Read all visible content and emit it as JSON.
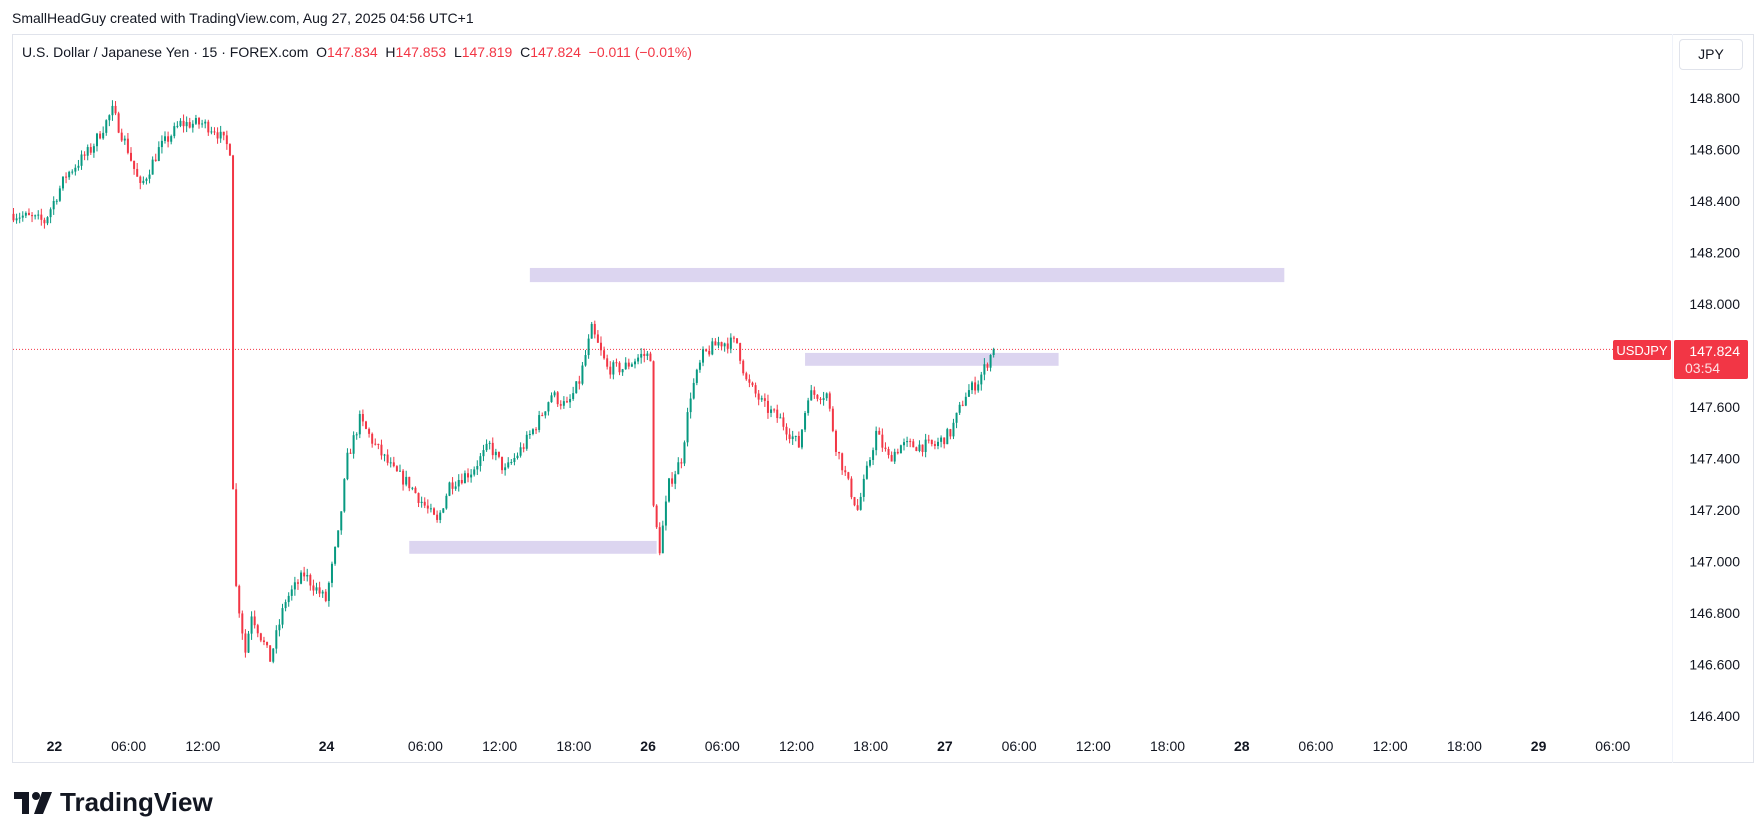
{
  "credit": "SmallHeadGuy created with TradingView.com, Aug 27, 2025 04:56 UTC+1",
  "legend": {
    "symbol": "U.S. Dollar / Japanese Yen · 15 · FOREX.com",
    "o_label": "O",
    "o": "147.834",
    "h_label": "H",
    "h": "147.853",
    "l_label": "L",
    "l": "147.819",
    "c_label": "C",
    "c": "147.824",
    "change": "−0.011 (−0.01%)"
  },
  "currency_button": "JPY",
  "price_tag": {
    "symbol": "USDJPY",
    "price": "147.824",
    "countdown": "03:54"
  },
  "logo": "TradingView",
  "colors": {
    "up": "#089981",
    "down": "#f23645",
    "zone": "#dcd5f0"
  },
  "chart_data": {
    "type": "candlestick",
    "interval_minutes": 15,
    "ylim": [
      146.3,
      148.95
    ],
    "y_ticks": [
      "148.800",
      "148.600",
      "148.400",
      "148.200",
      "148.000",
      "147.600",
      "147.400",
      "147.200",
      "147.000",
      "146.800",
      "146.600",
      "146.400"
    ],
    "y_tick_values": [
      148.8,
      148.6,
      148.4,
      148.2,
      148.0,
      147.6,
      147.4,
      147.2,
      147.0,
      146.8,
      146.6,
      146.4
    ],
    "x_ticks": [
      {
        "label": "22",
        "bold": true,
        "idx": 10
      },
      {
        "label": "06:00",
        "idx": 34
      },
      {
        "label": "12:00",
        "idx": 58
      },
      {
        "label": "24",
        "bold": true,
        "idx": 98
      },
      {
        "label": "06:00",
        "idx": 130
      },
      {
        "label": "12:00",
        "idx": 154
      },
      {
        "label": "18:00",
        "idx": 178
      },
      {
        "label": "26",
        "bold": true,
        "idx": 202
      },
      {
        "label": "06:00",
        "idx": 226
      },
      {
        "label": "12:00",
        "idx": 250
      },
      {
        "label": "18:00",
        "idx": 274
      },
      {
        "label": "27",
        "bold": true,
        "idx": 298
      },
      {
        "label": "06:00",
        "idx": 322
      },
      {
        "label": "12:00",
        "idx": 346
      },
      {
        "label": "18:00",
        "idx": 370
      },
      {
        "label": "28",
        "bold": true,
        "idx": 394
      },
      {
        "label": "06:00",
        "idx": 418
      },
      {
        "label": "12:00",
        "idx": 442
      },
      {
        "label": "18:00",
        "idx": 466
      },
      {
        "label": "29",
        "bold": true,
        "idx": 490
      },
      {
        "label": "06:00",
        "idx": 514
      }
    ],
    "last_price": 147.824,
    "path": [
      [
        0,
        148.35
      ],
      [
        10,
        148.32
      ],
      [
        17,
        148.5
      ],
      [
        25,
        148.6
      ],
      [
        32,
        148.75
      ],
      [
        37,
        148.6
      ],
      [
        41,
        148.45
      ],
      [
        47,
        148.6
      ],
      [
        54,
        148.7
      ],
      [
        61,
        148.7
      ],
      [
        65,
        148.68
      ],
      [
        70,
        148.6
      ],
      [
        71,
        147.3
      ],
      [
        72,
        146.9
      ],
      [
        75,
        146.65
      ],
      [
        77,
        146.8
      ],
      [
        83,
        146.62
      ],
      [
        88,
        146.85
      ],
      [
        94,
        146.95
      ],
      [
        101,
        146.85
      ],
      [
        105,
        147.1
      ],
      [
        108,
        147.4
      ],
      [
        112,
        147.55
      ],
      [
        117,
        147.45
      ],
      [
        123,
        147.35
      ],
      [
        128,
        147.3
      ],
      [
        134,
        147.2
      ],
      [
        137,
        147.15
      ],
      [
        141,
        147.3
      ],
      [
        148,
        147.35
      ],
      [
        154,
        147.45
      ],
      [
        159,
        147.35
      ],
      [
        165,
        147.45
      ],
      [
        170,
        147.55
      ],
      [
        174,
        147.65
      ],
      [
        179,
        147.6
      ],
      [
        183,
        147.7
      ],
      [
        187,
        147.9
      ],
      [
        192,
        147.75
      ],
      [
        197,
        147.75
      ],
      [
        203,
        147.8
      ],
      [
        206,
        147.8
      ],
      [
        207,
        147.2
      ],
      [
        209,
        147.05
      ],
      [
        212,
        147.3
      ],
      [
        216,
        147.4
      ],
      [
        219,
        147.65
      ],
      [
        223,
        147.8
      ],
      [
        228,
        147.85
      ],
      [
        234,
        147.85
      ],
      [
        237,
        147.7
      ],
      [
        243,
        147.6
      ],
      [
        248,
        147.55
      ],
      [
        254,
        147.45
      ],
      [
        257,
        147.65
      ],
      [
        263,
        147.65
      ],
      [
        266,
        147.45
      ],
      [
        270,
        147.3
      ],
      [
        273,
        147.2
      ],
      [
        276,
        147.35
      ],
      [
        279,
        147.5
      ],
      [
        283,
        147.4
      ],
      [
        287,
        147.45
      ],
      [
        292,
        147.45
      ],
      [
        298,
        147.45
      ],
      [
        303,
        147.5
      ],
      [
        308,
        147.65
      ],
      [
        312,
        147.7
      ],
      [
        316,
        147.8
      ],
      [
        317,
        147.824
      ]
    ],
    "zones": [
      {
        "from_idx": 167,
        "to_idx": 411,
        "top": 148.14,
        "bottom": 148.085
      },
      {
        "from_idx": 128,
        "to_idx": 208,
        "top": 147.08,
        "bottom": 147.03
      },
      {
        "from_idx": 256,
        "to_idx": 338,
        "top": 147.81,
        "bottom": 147.76
      }
    ]
  }
}
